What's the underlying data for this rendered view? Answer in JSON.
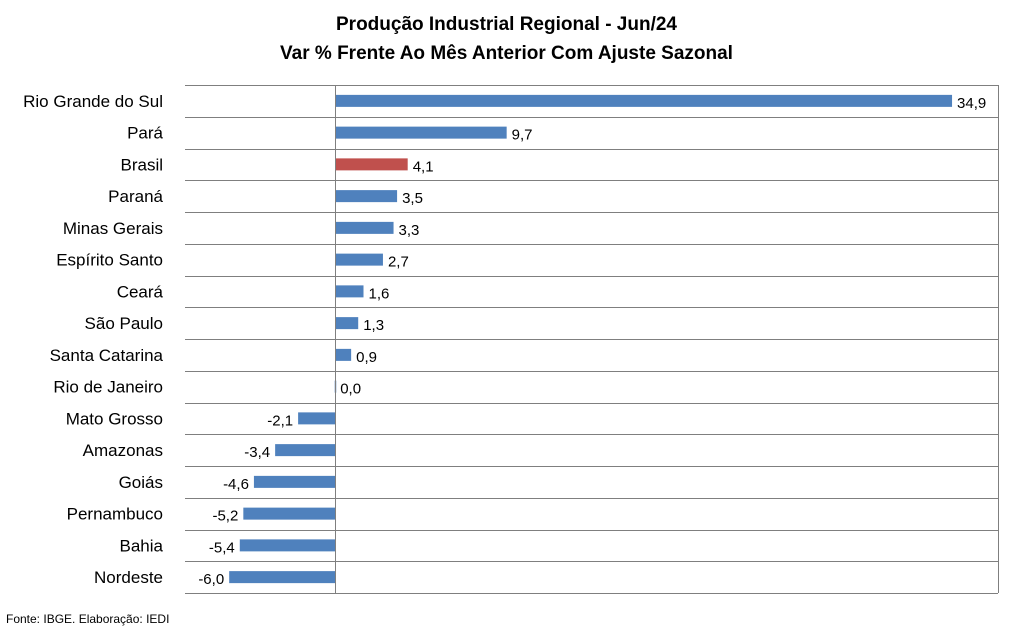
{
  "chart_data": {
    "type": "bar",
    "orientation": "horizontal",
    "title": "Produção Industrial Regional - Jun/24",
    "subtitle": "Var % Frente Ao Mês Anterior Com Ajuste Sazonal",
    "categories": [
      "Rio Grande do Sul",
      "Pará",
      "Brasil",
      "Paraná",
      "Minas Gerais",
      "Espírito Santo",
      "Ceará",
      "São Paulo",
      "Santa Catarina",
      "Rio de Janeiro",
      "Mato Grosso",
      "Amazonas",
      "Goiás",
      "Pernambuco",
      "Bahia",
      "Nordeste"
    ],
    "values": [
      34.9,
      9.7,
      4.1,
      3.5,
      3.3,
      2.7,
      1.6,
      1.3,
      0.9,
      0.0,
      -2.1,
      -3.4,
      -4.6,
      -5.2,
      -5.4,
      -6.0
    ],
    "value_labels": [
      "34,9",
      "9,7",
      "4,1",
      "3,5",
      "3,3",
      "2,7",
      "1,6",
      "1,3",
      "0,9",
      "0,0",
      "-2,1",
      "-3,4",
      "-4,6",
      "-5,2",
      "-5,4",
      "-6,0"
    ],
    "highlight": "Brasil",
    "xlabel": "",
    "ylabel": "",
    "xlim": [
      -8.5,
      37.5
    ],
    "grid": true,
    "legend": "none"
  },
  "colors": {
    "bar": "#4F81BD",
    "highlight_bar": "#C0504D",
    "grid": "#7F7F7F",
    "axis": "#7F7F7F"
  },
  "source_note": "Fonte: IBGE. Elaboração: IEDI"
}
